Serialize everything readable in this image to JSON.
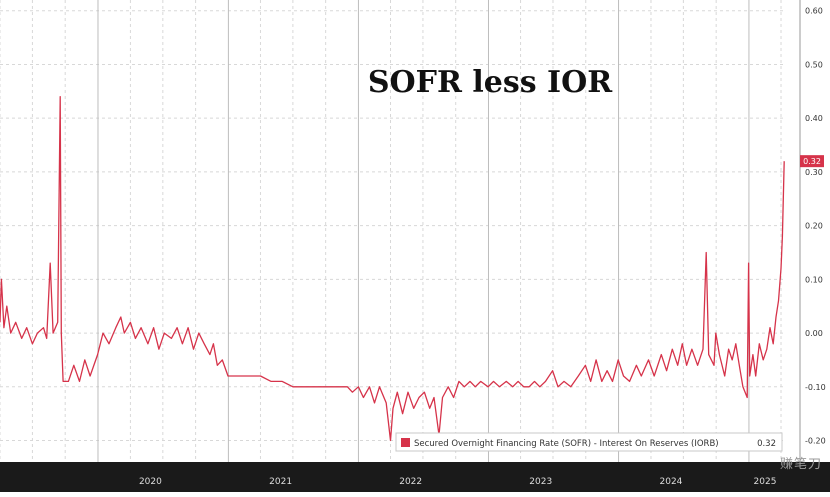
{
  "chart_data": {
    "type": "line",
    "title": "SOFR less IOR",
    "xlabel": "",
    "ylabel": "",
    "x_tick_labels": [
      "2020",
      "2021",
      "2022",
      "2023",
      "2024",
      "2025"
    ],
    "y_ticks": [
      -0.2,
      -0.1,
      0.0,
      0.1,
      0.2,
      0.3,
      0.4,
      0.5,
      0.6
    ],
    "y_tick_labels": [
      "-0.20",
      "-0.10",
      "0.00",
      "0.10",
      "0.20",
      "0.30",
      "0.40",
      "0.50",
      "0.60"
    ],
    "ylim": [
      -0.24,
      0.62
    ],
    "xlim": [
      "2019-04-01",
      "2025-04-15"
    ],
    "grid": true,
    "legend_position": "bottom-right",
    "series": [
      {
        "name": "Secured Overnight Financing Rate (SOFR) - Interest On Reserves (IORB)",
        "color": "#d6334a",
        "last_value_label": "0.32",
        "last_value": 0.32,
        "points": [
          [
            "2019-04-01",
            0.02
          ],
          [
            "2019-04-05",
            0.1
          ],
          [
            "2019-04-12",
            0.01
          ],
          [
            "2019-04-20",
            0.05
          ],
          [
            "2019-05-01",
            0.0
          ],
          [
            "2019-05-15",
            0.02
          ],
          [
            "2019-06-01",
            -0.01
          ],
          [
            "2019-06-15",
            0.01
          ],
          [
            "2019-07-01",
            -0.02
          ],
          [
            "2019-07-15",
            0.0
          ],
          [
            "2019-08-01",
            0.01
          ],
          [
            "2019-08-10",
            -0.01
          ],
          [
            "2019-08-20",
            0.13
          ],
          [
            "2019-08-28",
            0.0
          ],
          [
            "2019-09-10",
            0.02
          ],
          [
            "2019-09-17",
            0.44
          ],
          [
            "2019-09-20",
            0.0
          ],
          [
            "2019-09-25",
            -0.09
          ],
          [
            "2019-10-10",
            -0.09
          ],
          [
            "2019-10-25",
            -0.06
          ],
          [
            "2019-11-10",
            -0.09
          ],
          [
            "2019-11-25",
            -0.05
          ],
          [
            "2019-12-10",
            -0.08
          ],
          [
            "2019-12-31",
            -0.04
          ],
          [
            "2020-01-15",
            0.0
          ],
          [
            "2020-02-01",
            -0.02
          ],
          [
            "2020-02-20",
            0.01
          ],
          [
            "2020-03-05",
            0.03
          ],
          [
            "2020-03-15",
            0.0
          ],
          [
            "2020-04-01",
            0.02
          ],
          [
            "2020-04-15",
            -0.01
          ],
          [
            "2020-05-01",
            0.01
          ],
          [
            "2020-05-20",
            -0.02
          ],
          [
            "2020-06-05",
            0.01
          ],
          [
            "2020-06-20",
            -0.03
          ],
          [
            "2020-07-05",
            0.0
          ],
          [
            "2020-07-25",
            -0.01
          ],
          [
            "2020-08-10",
            0.01
          ],
          [
            "2020-08-25",
            -0.02
          ],
          [
            "2020-09-10",
            0.01
          ],
          [
            "2020-09-25",
            -0.03
          ],
          [
            "2020-10-10",
            0.0
          ],
          [
            "2020-10-25",
            -0.02
          ],
          [
            "2020-11-10",
            -0.04
          ],
          [
            "2020-11-20",
            -0.02
          ],
          [
            "2020-12-01",
            -0.06
          ],
          [
            "2020-12-15",
            -0.05
          ],
          [
            "2020-12-31",
            -0.08
          ],
          [
            "2021-01-10",
            -0.08
          ],
          [
            "2021-02-01",
            -0.08
          ],
          [
            "2021-03-01",
            -0.08
          ],
          [
            "2021-04-01",
            -0.08
          ],
          [
            "2021-05-01",
            -0.09
          ],
          [
            "2021-06-01",
            -0.09
          ],
          [
            "2021-07-01",
            -0.1
          ],
          [
            "2021-08-01",
            -0.1
          ],
          [
            "2021-09-01",
            -0.1
          ],
          [
            "2021-10-01",
            -0.1
          ],
          [
            "2021-11-01",
            -0.1
          ],
          [
            "2021-11-15",
            -0.1
          ],
          [
            "2021-12-01",
            -0.1
          ],
          [
            "2021-12-15",
            -0.11
          ],
          [
            "2022-01-01",
            -0.1
          ],
          [
            "2022-01-15",
            -0.12
          ],
          [
            "2022-02-01",
            -0.1
          ],
          [
            "2022-02-15",
            -0.13
          ],
          [
            "2022-03-01",
            -0.1
          ],
          [
            "2022-03-20",
            -0.13
          ],
          [
            "2022-04-01",
            -0.2
          ],
          [
            "2022-04-08",
            -0.14
          ],
          [
            "2022-04-20",
            -0.11
          ],
          [
            "2022-05-05",
            -0.15
          ],
          [
            "2022-05-20",
            -0.11
          ],
          [
            "2022-06-05",
            -0.14
          ],
          [
            "2022-06-20",
            -0.12
          ],
          [
            "2022-07-05",
            -0.11
          ],
          [
            "2022-07-20",
            -0.14
          ],
          [
            "2022-08-01",
            -0.12
          ],
          [
            "2022-08-15",
            -0.19
          ],
          [
            "2022-08-25",
            -0.12
          ],
          [
            "2022-09-10",
            -0.1
          ],
          [
            "2022-09-25",
            -0.12
          ],
          [
            "2022-10-10",
            -0.09
          ],
          [
            "2022-10-25",
            -0.1
          ],
          [
            "2022-11-10",
            -0.09
          ],
          [
            "2022-11-25",
            -0.1
          ],
          [
            "2022-12-10",
            -0.09
          ],
          [
            "2022-12-31",
            -0.1
          ],
          [
            "2023-01-15",
            -0.09
          ],
          [
            "2023-02-01",
            -0.1
          ],
          [
            "2023-02-20",
            -0.09
          ],
          [
            "2023-03-10",
            -0.1
          ],
          [
            "2023-03-25",
            -0.09
          ],
          [
            "2023-04-10",
            -0.1
          ],
          [
            "2023-04-25",
            -0.1
          ],
          [
            "2023-05-10",
            -0.09
          ],
          [
            "2023-05-25",
            -0.1
          ],
          [
            "2023-06-10",
            -0.09
          ],
          [
            "2023-06-30",
            -0.07
          ],
          [
            "2023-07-15",
            -0.1
          ],
          [
            "2023-08-01",
            -0.09
          ],
          [
            "2023-08-20",
            -0.1
          ],
          [
            "2023-09-10",
            -0.08
          ],
          [
            "2023-09-30",
            -0.06
          ],
          [
            "2023-10-15",
            -0.09
          ],
          [
            "2023-10-30",
            -0.05
          ],
          [
            "2023-11-15",
            -0.09
          ],
          [
            "2023-11-30",
            -0.07
          ],
          [
            "2023-12-15",
            -0.09
          ],
          [
            "2023-12-31",
            -0.05
          ],
          [
            "2024-01-15",
            -0.08
          ],
          [
            "2024-02-01",
            -0.09
          ],
          [
            "2024-02-20",
            -0.06
          ],
          [
            "2024-03-05",
            -0.08
          ],
          [
            "2024-03-25",
            -0.05
          ],
          [
            "2024-04-10",
            -0.08
          ],
          [
            "2024-04-30",
            -0.04
          ],
          [
            "2024-05-15",
            -0.07
          ],
          [
            "2024-05-31",
            -0.03
          ],
          [
            "2024-06-15",
            -0.06
          ],
          [
            "2024-06-28",
            -0.02
          ],
          [
            "2024-07-10",
            -0.06
          ],
          [
            "2024-07-25",
            -0.03
          ],
          [
            "2024-08-10",
            -0.06
          ],
          [
            "2024-08-25",
            -0.03
          ],
          [
            "2024-09-03",
            0.15
          ],
          [
            "2024-09-10",
            -0.04
          ],
          [
            "2024-09-25",
            -0.06
          ],
          [
            "2024-09-30",
            0.0
          ],
          [
            "2024-10-10",
            -0.04
          ],
          [
            "2024-10-25",
            -0.08
          ],
          [
            "2024-11-05",
            -0.03
          ],
          [
            "2024-11-15",
            -0.05
          ],
          [
            "2024-11-25",
            -0.02
          ],
          [
            "2024-12-05",
            -0.06
          ],
          [
            "2024-12-15",
            -0.1
          ],
          [
            "2024-12-27",
            -0.12
          ],
          [
            "2024-12-31",
            0.13
          ],
          [
            "2025-01-03",
            -0.08
          ],
          [
            "2025-01-12",
            -0.04
          ],
          [
            "2025-01-20",
            -0.08
          ],
          [
            "2025-01-30",
            -0.02
          ],
          [
            "2025-02-10",
            -0.05
          ],
          [
            "2025-02-20",
            -0.03
          ],
          [
            "2025-03-01",
            0.01
          ],
          [
            "2025-03-10",
            -0.02
          ],
          [
            "2025-03-18",
            0.03
          ],
          [
            "2025-03-25",
            0.06
          ],
          [
            "2025-04-01",
            0.12
          ],
          [
            "2025-04-05",
            0.18
          ],
          [
            "2025-04-10",
            0.32
          ]
        ]
      }
    ],
    "legend": {
      "text": "Secured Overnight Financing Rate (SOFR) - Interest On Reserves (IORB)",
      "value": "0.32"
    },
    "colors": {
      "series": "#d6334a",
      "grid": "#d8d8d8",
      "axis_text": "#333333",
      "bottom_bar": "#1a1a1a",
      "bottom_text": "#dddddd",
      "value_tag": "#d6334a"
    }
  },
  "watermark": {
    "text": "赚笔刀"
  }
}
